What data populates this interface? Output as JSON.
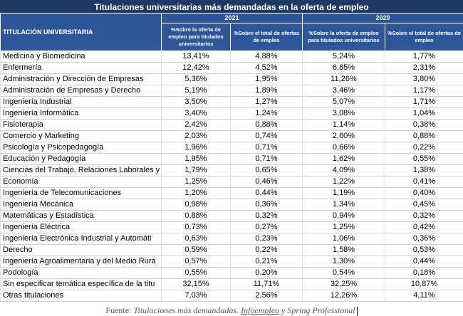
{
  "title": "Titulaciones universitarias más demandadas en la oferta de empleo",
  "header": {
    "name_col": "TITULACIÓN UNIVERSITARIA",
    "years": [
      "2021",
      "2020"
    ],
    "sub_cols": [
      "%Sobre la oferta de empleo para titulados universitarios",
      "%Sobre el total de ofertas de empleo",
      "%Sobre la oferta de empleo para titulados universitarios",
      "%Sobre el total de ofertas de empleo"
    ]
  },
  "rows": [
    {
      "name": "Medicina y Biomedicina",
      "v": [
        "13,41%",
        "4,88%",
        "5,24%",
        "1,77%"
      ]
    },
    {
      "name": "Enfermería",
      "v": [
        "12,42%",
        "4,52%",
        "6,85%",
        "2,31%"
      ]
    },
    {
      "name": "Administración y Dirección de Empresas",
      "v": [
        "5,36%",
        "1,95%",
        "11,26%",
        "3,80%"
      ]
    },
    {
      "name": "Administración de Empresas y Derecho",
      "v": [
        "5,19%",
        "1,89%",
        "3,46%",
        "1,17%"
      ]
    },
    {
      "name": "Ingeniería Industrial",
      "v": [
        "3,50%",
        "1,27%",
        "5,07%",
        "1,71%"
      ]
    },
    {
      "name": "Ingeniería Informática",
      "v": [
        "3,40%",
        "1,24%",
        "3,08%",
        "1,04%"
      ]
    },
    {
      "name": "Fisioterapia",
      "v": [
        "2,42%",
        "0,88%",
        "1,14%",
        "0,38%"
      ]
    },
    {
      "name": "Comercio y Marketing",
      "v": [
        "2,03%",
        "0,74%",
        "2,60%",
        "0,88%"
      ]
    },
    {
      "name": "Psicología y Psicopedagogía",
      "v": [
        "1,96%",
        "0,71%",
        "0,66%",
        "0,22%"
      ]
    },
    {
      "name": "Educación y Pedagogía",
      "v": [
        "1,95%",
        "0,71%",
        "1,62%",
        "0,55%"
      ]
    },
    {
      "name": "Ciencias del Trabajo, Relaciones Laborales y",
      "v": [
        "1,79%",
        "0,65%",
        "4,09%",
        "1,38%"
      ]
    },
    {
      "name": "Economía",
      "v": [
        "1,25%",
        "0,46%",
        "1,22%",
        "0,41%"
      ]
    },
    {
      "name": "Ingeniería de Telecomunicaciones",
      "v": [
        "1,20%",
        "0,44%",
        "1,19%",
        "0,40%"
      ]
    },
    {
      "name": "Ingeniería Mecánica",
      "v": [
        "0,98%",
        "0,36%",
        "1,34%",
        "0,45%"
      ]
    },
    {
      "name": "Matemáticas y Estadística",
      "v": [
        "0,88%",
        "0,32%",
        "0,94%",
        "0,32%"
      ]
    },
    {
      "name": "Ingeniería Eléctrica",
      "v": [
        "0,73%",
        "0,27%",
        "1,25%",
        "0,42%"
      ]
    },
    {
      "name": "Ingeniería Electrónica Industrial y Automáti",
      "v": [
        "0,63%",
        "0,23%",
        "1,06%",
        "0,36%"
      ]
    },
    {
      "name": "Derecho",
      "v": [
        "0,59%",
        "0,22%",
        "1,58%",
        "0,53%"
      ]
    },
    {
      "name": "Ingeniería Agroalimentaria y del Medio Rura",
      "v": [
        "0,57%",
        "0,21%",
        "1,30%",
        "0,44%"
      ]
    },
    {
      "name": "Podología",
      "v": [
        "0,55%",
        "0,20%",
        "0,54%",
        "0,18%"
      ]
    },
    {
      "name": "Sin especificar temática específica de la titu",
      "v": [
        "32,15%",
        "11,71%",
        "32,25%",
        "10,87%"
      ]
    },
    {
      "name": "Otras titulaciones",
      "v": [
        "7,03%",
        "2,56%",
        "12,26%",
        "4,11%"
      ]
    }
  ],
  "source": {
    "prefix": "Fuente: ",
    "italic": "Titulaciones más demandadas. ",
    "underlined": "Infoempleo",
    "suffix": " y Spring Professional"
  },
  "colors": {
    "title_bg": "#1f3864",
    "header_bg": "#2e5597"
  }
}
